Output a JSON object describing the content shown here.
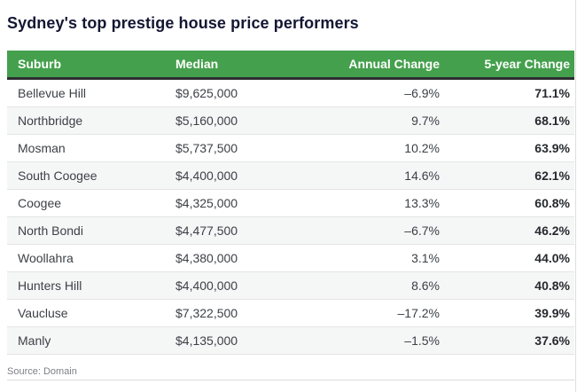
{
  "title": "Sydney's top prestige house price performers",
  "source_note": "Source: Domain",
  "table": {
    "headers": [
      "Suburb",
      "Median",
      "Annual Change",
      "5-year Change"
    ],
    "rows": [
      {
        "suburb": "Bellevue Hill",
        "median": "$9,625,000",
        "annual_change": "–6.9%",
        "five_year_change": "71.1%"
      },
      {
        "suburb": "Northbridge",
        "median": "$5,160,000",
        "annual_change": "9.7%",
        "five_year_change": "68.1%"
      },
      {
        "suburb": "Mosman",
        "median": "$5,737,500",
        "annual_change": "10.2%",
        "five_year_change": "63.9%"
      },
      {
        "suburb": "South Coogee",
        "median": "$4,400,000",
        "annual_change": "14.6%",
        "five_year_change": "62.1%"
      },
      {
        "suburb": "Coogee",
        "median": "$4,325,000",
        "annual_change": "13.3%",
        "five_year_change": "60.8%"
      },
      {
        "suburb": "North Bondi",
        "median": "$4,477,500",
        "annual_change": "–6.7%",
        "five_year_change": "46.2%"
      },
      {
        "suburb": "Woollahra",
        "median": "$4,380,000",
        "annual_change": "3.1%",
        "five_year_change": "44.0%"
      },
      {
        "suburb": "Hunters Hill",
        "median": "$4,400,000",
        "annual_change": "8.6%",
        "five_year_change": "40.8%"
      },
      {
        "suburb": "Vaucluse",
        "median": "$7,322,500",
        "annual_change": "–17.2%",
        "five_year_change": "39.9%"
      },
      {
        "suburb": "Manly",
        "median": "$4,135,000",
        "annual_change": "–1.5%",
        "five_year_change": "37.6%"
      }
    ]
  },
  "colors": {
    "header_green": "#44a04c",
    "header_border": "#2c2e30",
    "row_alt_background": "#f5f6f6",
    "row_divider": "#e4e4e4",
    "title_color": "#131733",
    "body_text": "#3c4147",
    "bold_value_text": "#26292e",
    "source_text": "#7d8085"
  },
  "chart_data": {
    "type": "table",
    "title": "Sydney's top prestige house price performers",
    "columns": [
      "Suburb",
      "Median",
      "Annual Change",
      "5-year Change"
    ],
    "rows": [
      [
        "Bellevue Hill",
        9625000,
        -6.9,
        71.1
      ],
      [
        "Northbridge",
        5160000,
        9.7,
        68.1
      ],
      [
        "Mosman",
        5737500,
        10.2,
        63.9
      ],
      [
        "South Coogee",
        4400000,
        14.6,
        62.1
      ],
      [
        "Coogee",
        4325000,
        13.3,
        60.8
      ],
      [
        "North Bondi",
        4477500,
        -6.7,
        46.2
      ],
      [
        "Woollahra",
        4380000,
        3.1,
        44.0
      ],
      [
        "Hunters Hill",
        4400000,
        8.6,
        40.8
      ],
      [
        "Vaucluse",
        7322500,
        -17.2,
        39.9
      ],
      [
        "Manly",
        4135000,
        -1.5,
        37.6
      ]
    ],
    "units": {
      "Median": "AUD",
      "Annual Change": "%",
      "5-year Change": "%"
    },
    "source": "Source: Domain"
  }
}
